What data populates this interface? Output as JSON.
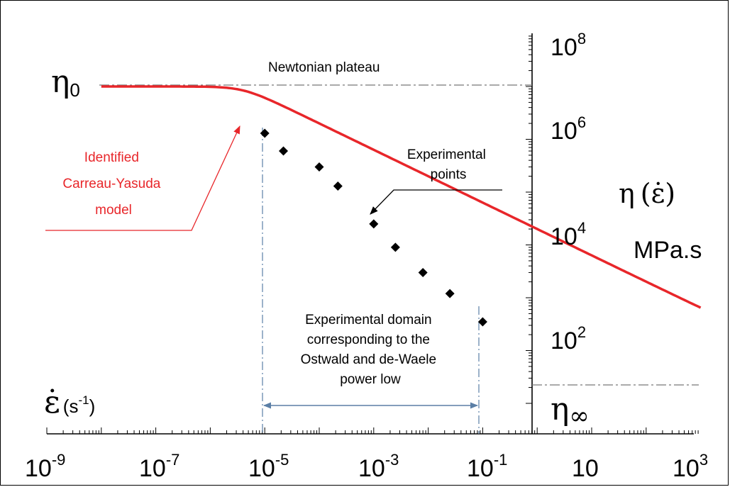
{
  "chart_data": {
    "type": "line",
    "scale": "log-log",
    "x_axis": {
      "range": [
        1e-09,
        1000
      ],
      "tick_labels": [
        {
          "base": "10",
          "exp": "-9",
          "value": 1e-09
        },
        {
          "base": "10",
          "exp": "-7",
          "value": 1e-07
        },
        {
          "base": "10",
          "exp": "-5",
          "value": 1e-05
        },
        {
          "base": "10",
          "exp": "-3",
          "value": 0.001
        },
        {
          "base": "10",
          "exp": "-1",
          "value": 0.1
        },
        {
          "base": "10",
          "exp": "",
          "value": 10
        },
        {
          "base": "10",
          "exp": "3",
          "value": 1000
        }
      ],
      "label": {
        "symbol": "ε̇",
        "unit_prefix": "(s",
        "unit_exp": "-1",
        "unit_suffix": ")"
      }
    },
    "y_axis": {
      "range": [
        10,
        100000000.0
      ],
      "crosses_x_at": 1,
      "tick_labels": [
        {
          "base": "10",
          "exp": "8",
          "value": 100000000.0
        },
        {
          "base": "10",
          "exp": "6",
          "value": 1000000.0
        },
        {
          "base": "10",
          "exp": "4",
          "value": 10000
        },
        {
          "base": "10",
          "exp": "2",
          "value": 100
        }
      ],
      "label": {
        "eta": "η",
        "open": "(",
        "symbol": "ε̇",
        "close": ")",
        "unit": "MPa.s"
      }
    },
    "series": [
      {
        "kind": "model_curve",
        "color": "#e8262a",
        "model": "Carreau-Yasuda",
        "eta0": 10000000,
        "eta_inf": 15,
        "lambda": 250000,
        "a": 2,
        "n": 0.5,
        "x_range": [
          1e-08,
          1000
        ]
      },
      {
        "kind": "points",
        "marker": "diamond",
        "color": "#000000",
        "x": [
          1e-05,
          2.2e-05,
          0.0001,
          0.00022,
          0.001,
          0.0025,
          0.008,
          0.025,
          0.1
        ],
        "y": [
          1300000,
          600000,
          300000,
          130000,
          25000,
          9000,
          3000,
          1200,
          350
        ]
      }
    ],
    "levels": {
      "eta0_label": {
        "base": "η",
        "sub": "0"
      },
      "eta_inf_label": {
        "base": "η",
        "sub": "∞"
      }
    },
    "annotations": {
      "newtonian_plateau": "Newtonian plateau",
      "experimental_points": [
        "Experimental",
        "points"
      ],
      "model_label": [
        "Identified",
        "Carreau-Yasuda",
        "model"
      ],
      "domain": [
        "Experimental domain",
        "corresponding to the",
        "Ostwald and de-Waele",
        "power low"
      ]
    },
    "domain_range": [
      1e-05,
      0.1
    ]
  }
}
